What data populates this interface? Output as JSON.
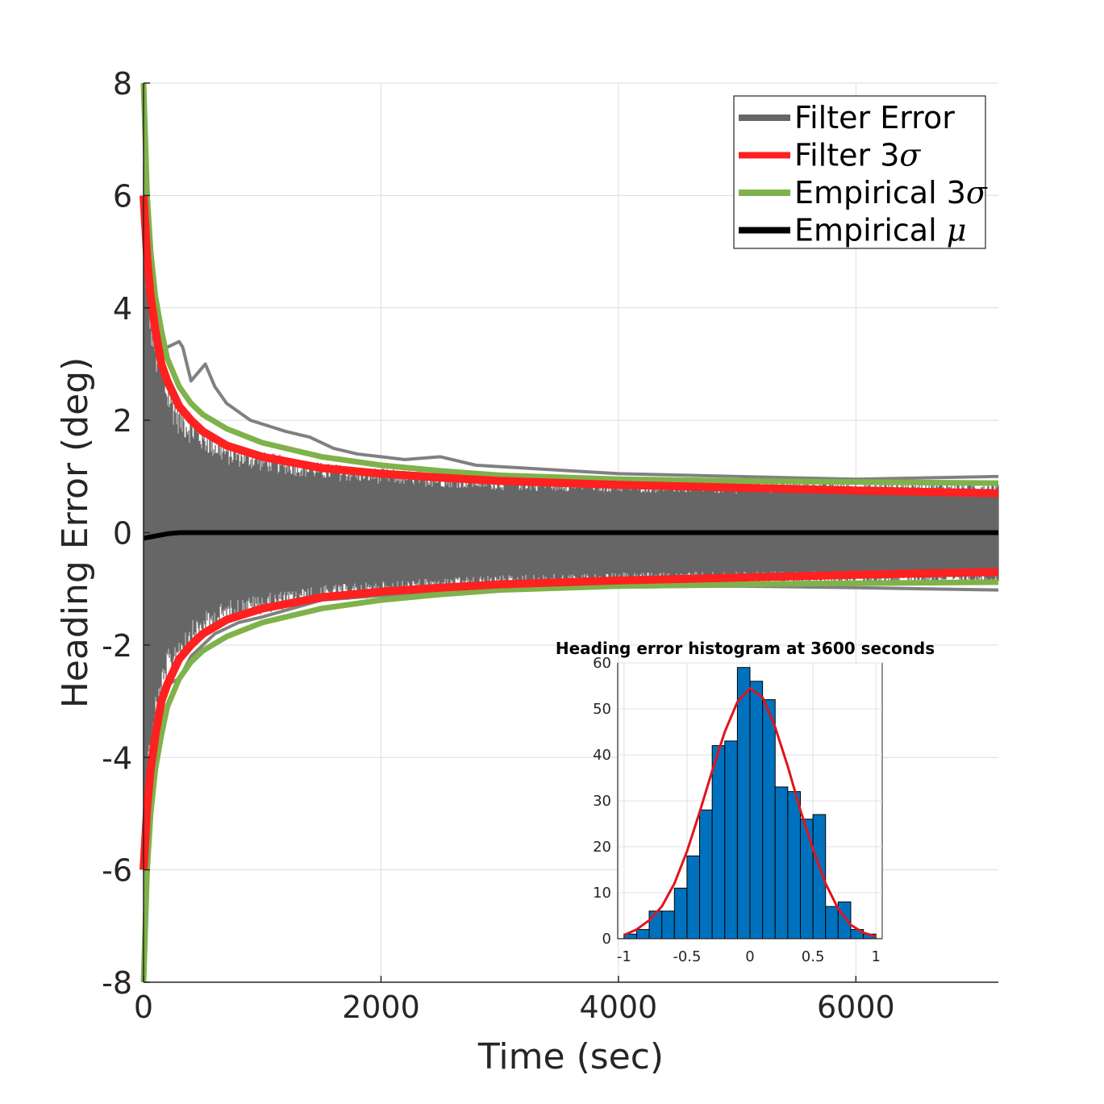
{
  "chart_data": [
    {
      "type": "line",
      "xlabel": "Time (sec)",
      "ylabel": "Heading Error (deg)",
      "xlim": [
        0,
        7200
      ],
      "ylim": [
        -8,
        8
      ],
      "xticks": [
        0,
        2000,
        4000,
        6000
      ],
      "xtick_labels": [
        "0",
        "2000",
        "4000",
        "6000"
      ],
      "yticks": [
        -8,
        -6,
        -4,
        -2,
        0,
        2,
        4,
        6,
        8
      ],
      "ytick_labels": [
        "-8",
        "-6",
        "-4",
        "-2",
        "0",
        "2",
        "4",
        "6",
        "8"
      ],
      "grid": true,
      "legend_position": "top-right",
      "series": [
        {
          "name": "Filter Error",
          "name_prefix": "Filter Error",
          "name_symbol": "",
          "color": "#666666",
          "kind": "band",
          "x": [
            0,
            20,
            50,
            100,
            200,
            300,
            500,
            700,
            1000,
            1500,
            2000,
            3000,
            4000,
            5000,
            6000,
            7200
          ],
          "upper": [
            7.2,
            5.5,
            4.6,
            3.7,
            2.8,
            2.3,
            1.9,
            1.6,
            1.45,
            1.25,
            1.15,
            1.0,
            0.95,
            0.92,
            0.92,
            0.92
          ],
          "lower": [
            -7.2,
            -5.5,
            -4.6,
            -3.7,
            -2.8,
            -2.3,
            -1.9,
            -1.6,
            -1.45,
            -1.25,
            -1.15,
            -1.0,
            -0.95,
            -0.92,
            -0.92,
            -0.92
          ],
          "outliers_upper": {
            "x": [
              200,
              300,
              330,
              400,
              480,
              520,
              600,
              700,
              900,
              1200,
              1400,
              1600,
              1800,
              2000,
              2200,
              2500,
              2800,
              3200,
              3600,
              4000,
              5000,
              6000,
              7200
            ],
            "y": [
              3.3,
              3.4,
              3.3,
              2.7,
              2.9,
              3.0,
              2.6,
              2.3,
              2.0,
              1.8,
              1.7,
              1.5,
              1.4,
              1.35,
              1.3,
              1.35,
              1.2,
              1.15,
              1.1,
              1.05,
              1.0,
              0.95,
              1.0
            ]
          },
          "outliers_lower": {
            "x": [
              200,
              300,
              400,
              600,
              800,
              1000,
              1500,
              2000,
              3000,
              4000,
              5000,
              6000,
              7200
            ],
            "y": [
              -2.7,
              -2.6,
              -2.2,
              -1.8,
              -1.6,
              -1.5,
              -1.2,
              -1.12,
              -1.02,
              -0.97,
              -0.95,
              -0.98,
              -1.02
            ]
          }
        },
        {
          "name": "Filter 3σ",
          "name_prefix": "Filter 3",
          "name_symbol": "σ",
          "color": "#ff2020",
          "kind": "pm",
          "x": [
            0,
            30,
            60,
            100,
            150,
            200,
            300,
            400,
            500,
            700,
            1000,
            1500,
            2000,
            2500,
            3000,
            4000,
            5000,
            6000,
            7200
          ],
          "y": [
            6.0,
            4.9,
            4.2,
            3.6,
            3.0,
            2.7,
            2.25,
            2.0,
            1.8,
            1.55,
            1.35,
            1.15,
            1.05,
            0.98,
            0.92,
            0.85,
            0.8,
            0.75,
            0.7
          ]
        },
        {
          "name": "Empirical 3σ",
          "name_prefix": "Empirical 3",
          "name_symbol": "σ",
          "color": "#7fb24a",
          "kind": "pm",
          "x": [
            0,
            30,
            60,
            100,
            150,
            200,
            300,
            400,
            500,
            700,
            1000,
            1500,
            2000,
            2500,
            3000,
            4000,
            5000,
            6000,
            7200
          ],
          "y": [
            8.0,
            6.0,
            5.0,
            4.2,
            3.6,
            3.1,
            2.6,
            2.3,
            2.1,
            1.85,
            1.6,
            1.35,
            1.2,
            1.1,
            1.02,
            0.95,
            0.92,
            0.9,
            0.88
          ]
        },
        {
          "name": "Empirical μ",
          "name_prefix": "Empirical ",
          "name_symbol": "μ",
          "color": "#000000",
          "kind": "line",
          "x": [
            0,
            50,
            100,
            200,
            300,
            500,
            1000,
            2000,
            4000,
            7200
          ],
          "y": [
            -0.1,
            -0.08,
            -0.06,
            -0.02,
            0.0,
            0.0,
            0.0,
            0.0,
            0.0,
            0.0
          ]
        }
      ]
    },
    {
      "type": "bar",
      "title": "Heading error histogram at 3600 seconds",
      "xlim": [
        -1.05,
        1.05
      ],
      "ylim": [
        0,
        60
      ],
      "xticks": [
        -1,
        -0.5,
        0,
        0.5,
        1
      ],
      "xtick_labels": [
        "-1",
        "-0.5",
        "0",
        "0.5",
        "1"
      ],
      "yticks": [
        0,
        10,
        20,
        30,
        40,
        50,
        60
      ],
      "ytick_labels": [
        "0",
        "10",
        "20",
        "30",
        "40",
        "50",
        "60"
      ],
      "grid": true,
      "bin_edges": [
        -1.0,
        -0.9,
        -0.8,
        -0.7,
        -0.6,
        -0.5,
        -0.4,
        -0.3,
        -0.2,
        -0.1,
        0.0,
        0.1,
        0.2,
        0.3,
        0.4,
        0.5,
        0.6,
        0.7,
        0.8,
        0.9,
        1.0
      ],
      "counts": [
        1,
        2,
        6,
        6,
        11,
        18,
        28,
        42,
        43,
        59,
        56,
        52,
        33,
        32,
        26,
        27,
        7,
        8,
        2,
        1
      ],
      "bar_color": "#0072bd",
      "fit_curve": {
        "color": "#e0141e",
        "x": [
          -1.0,
          -0.9,
          -0.8,
          -0.7,
          -0.6,
          -0.5,
          -0.4,
          -0.3,
          -0.2,
          -0.1,
          0.0,
          0.1,
          0.2,
          0.3,
          0.4,
          0.5,
          0.6,
          0.7,
          0.8,
          0.9,
          1.0
        ],
        "y": [
          0.8,
          2.0,
          4.0,
          7.0,
          12.0,
          19.0,
          27.5,
          36.5,
          45.0,
          51.5,
          54.5,
          52.5,
          46.0,
          37.5,
          28.0,
          19.5,
          12.0,
          6.5,
          3.0,
          1.3,
          0.5
        ]
      }
    }
  ]
}
